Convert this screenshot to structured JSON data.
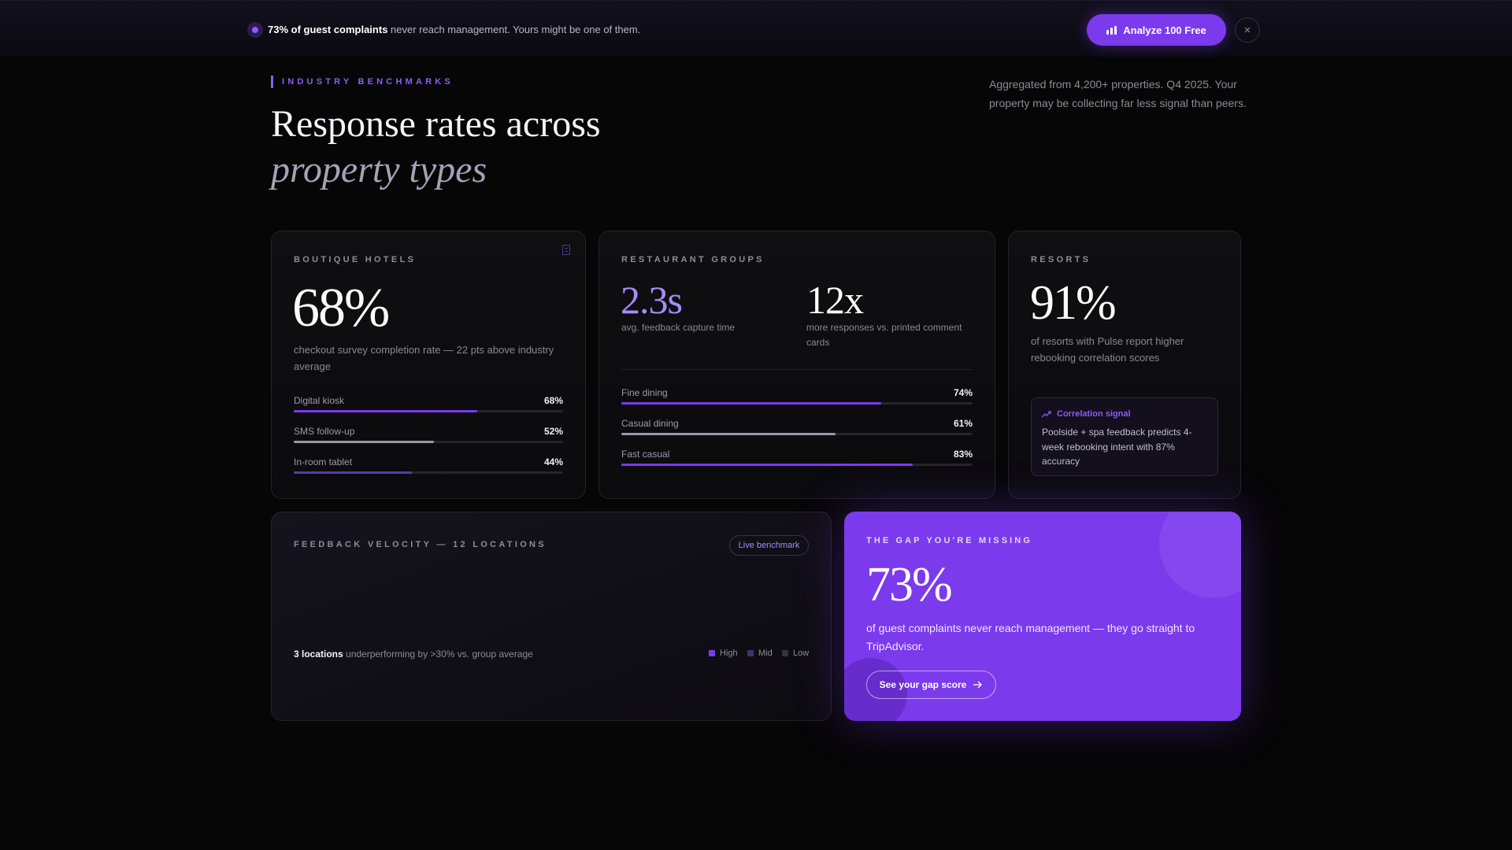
{
  "banner": {
    "highlight": "73% of guest complaints",
    "text": " never reach management. Yours might be one of them.",
    "cta_label": "Analyze 100 Free",
    "close_glyph": "×",
    "icons": {
      "status": "pulse-dot-icon",
      "cta": "bar-chart-icon",
      "close": "close-icon"
    }
  },
  "header": {
    "eyebrow": "INDUSTRY BENCHMARKS",
    "title_line1": "Response rates across",
    "title_line2": "property types",
    "aside": "Aggregated from 4,200+ properties. Q4 2025. Your property may be collecting far less signal than peers."
  },
  "boutique": {
    "label": "BOUTIQUE HOTELS",
    "stat": "68%",
    "desc": "checkout survey completion rate — 22 pts above industry average",
    "icon": "document-icon",
    "bars": [
      {
        "label": "Digital kiosk",
        "value": "68%",
        "fill": 0.68,
        "color": "#7c3aed"
      },
      {
        "label": "SMS follow-up",
        "value": "52%",
        "fill": 0.52,
        "color": "#9a97a6"
      },
      {
        "label": "In-room tablet",
        "value": "44%",
        "fill": 0.44,
        "color": "#5b3aa8"
      }
    ]
  },
  "restaurants": {
    "label": "RESTAURANT GROUPS",
    "stat1": "2.3s",
    "stat1_desc": "avg. feedback capture time",
    "stat2": "12x",
    "stat2_desc": "more responses vs. printed comment cards",
    "bars": [
      {
        "label": "Fine dining",
        "value": "74%",
        "fill": 0.74,
        "color": "#7c3aed"
      },
      {
        "label": "Casual dining",
        "value": "61%",
        "fill": 0.61,
        "color": "#9a97a6"
      },
      {
        "label": "Fast casual",
        "value": "83%",
        "fill": 0.83,
        "color": "#7c3aed"
      }
    ]
  },
  "resorts": {
    "label": "RESORTS",
    "stat": "91%",
    "desc": "of resorts with Pulse report higher rebooking correlation scores",
    "signal_title": "Correlation signal",
    "signal_icon": "trend-up-icon",
    "signal_text": "Poolside + spa feedback predicts 4-week rebooking intent with 87% accuracy"
  },
  "velocity": {
    "label": "FEEDBACK VELOCITY — 12 LOCATIONS",
    "pill": "Live benchmark",
    "foot_strong": "3 locations",
    "foot_text": " underperforming by >30% vs. group average",
    "legend": [
      {
        "label": "High",
        "color": "#7c3aed"
      },
      {
        "label": "Mid",
        "color": "#45306f"
      },
      {
        "label": "Low",
        "color": "#34323b"
      }
    ]
  },
  "gap": {
    "label": "THE GAP YOU'RE MISSING",
    "stat": "73%",
    "desc": "of guest complaints never reach management — they go straight to TripAdvisor.",
    "cta": "See your gap score",
    "cta_icon": "arrow-right-icon"
  }
}
